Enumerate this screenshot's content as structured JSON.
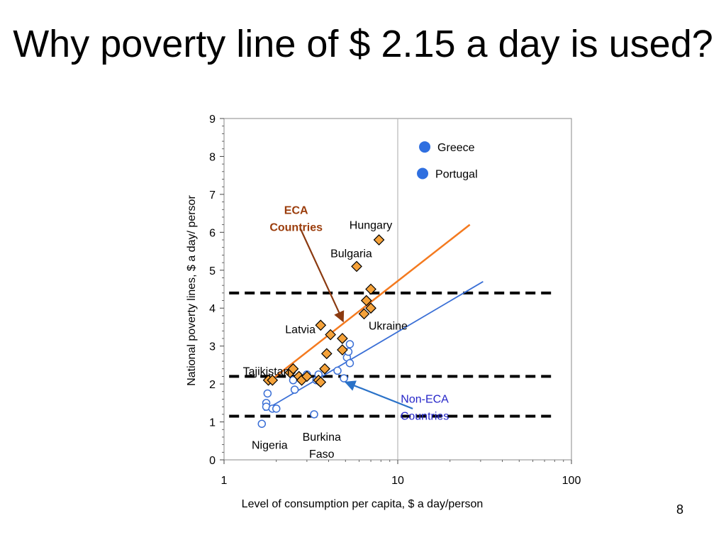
{
  "slide": {
    "title": "Why poverty line of $ 2.15 a day is used?",
    "page_number": "8"
  },
  "colors": {
    "eca_marker": "#f5a23a",
    "eca_line": "#f47a1f",
    "non_eca_line": "#3a6fd6",
    "non_eca_marker_stroke": "#3a6fd6",
    "highlight_marker": "#2f6fe0",
    "eca_label": "#9b3d0c",
    "non_eca_label": "#2424c8",
    "eca_arrow": "#8b3a10",
    "non_eca_arrow": "#2a72c8"
  },
  "chart_data": {
    "type": "scatter",
    "title": "",
    "xlabel": "Level of consumption per capita, $ a day/person",
    "ylabel": "National poverty lines, $ a day/ persor",
    "x_scale": "log",
    "xlim": [
      1,
      100
    ],
    "ylim": [
      0,
      9
    ],
    "x_ticks": [
      1,
      10,
      100
    ],
    "x_tick_labels": [
      "1",
      "10",
      "100"
    ],
    "y_ticks": [
      0,
      1,
      2,
      3,
      4,
      5,
      6,
      7,
      8,
      9
    ],
    "y_tick_labels": [
      "0",
      "1",
      "2",
      "3",
      "4",
      "5",
      "6",
      "7",
      "8",
      "9"
    ],
    "vertical_gridline_x": 10,
    "series": [
      {
        "name": "ECA Countries",
        "marker": "diamond",
        "points": [
          [
            1.8,
            2.1
          ],
          [
            1.9,
            2.1
          ],
          [
            2.4,
            2.3
          ],
          [
            2.5,
            2.4
          ],
          [
            2.7,
            2.2
          ],
          [
            2.8,
            2.1
          ],
          [
            3.0,
            2.2
          ],
          [
            3.5,
            2.1
          ],
          [
            3.6,
            2.05
          ],
          [
            3.6,
            3.55
          ],
          [
            3.8,
            2.4
          ],
          [
            3.9,
            2.8
          ],
          [
            4.1,
            3.3
          ],
          [
            4.8,
            2.9
          ],
          [
            4.8,
            3.2
          ],
          [
            5.8,
            5.1
          ],
          [
            6.4,
            3.85
          ],
          [
            6.6,
            4.2
          ],
          [
            7.0,
            4.0
          ],
          [
            7.0,
            4.5
          ],
          [
            7.8,
            5.8
          ]
        ]
      },
      {
        "name": "Non-ECA Countries",
        "marker": "circle-open",
        "points": [
          [
            1.65,
            0.95
          ],
          [
            1.75,
            1.5
          ],
          [
            1.75,
            1.4
          ],
          [
            1.78,
            1.75
          ],
          [
            1.9,
            1.35
          ],
          [
            2.0,
            1.35
          ],
          [
            2.5,
            2.1
          ],
          [
            2.55,
            1.85
          ],
          [
            3.0,
            2.25
          ],
          [
            3.3,
            1.2
          ],
          [
            3.4,
            2.1
          ],
          [
            3.5,
            2.25
          ],
          [
            4.5,
            2.35
          ],
          [
            4.9,
            2.15
          ],
          [
            5.1,
            2.7
          ],
          [
            5.2,
            2.85
          ],
          [
            5.3,
            2.55
          ],
          [
            5.3,
            3.05
          ]
        ]
      },
      {
        "name": "Highlighted",
        "marker": "circle-filled",
        "points": [
          [
            13,
            8.25
          ],
          [
            11.5,
            7.55
          ]
        ]
      }
    ],
    "trend_lines": [
      {
        "name": "ECA fit",
        "from": [
          1.8,
          2.05
        ],
        "to": [
          26,
          6.2
        ]
      },
      {
        "name": "Non-ECA fit",
        "from": [
          1.7,
          1.3
        ],
        "to": [
          31,
          4.7
        ]
      }
    ],
    "reference_lines": [
      {
        "y": 4.4,
        "style": "dashed"
      },
      {
        "y": 2.2,
        "style": "dashed"
      },
      {
        "y": 1.15,
        "style": "dashed"
      }
    ],
    "reference_lines_x_range": [
      1.07,
      80
    ],
    "legend": [
      {
        "label": "Greece",
        "marker_at": [
          14.3,
          8.25
        ]
      },
      {
        "label": "Portugal",
        "marker_at": [
          13.9,
          7.55
        ]
      }
    ],
    "annotations": [
      {
        "id": "hungary",
        "text": "Hungary",
        "at": [
          7.0,
          6.2
        ],
        "anchor": "middle"
      },
      {
        "id": "bulgaria",
        "text": "Bulgaria",
        "at": [
          5.4,
          5.45
        ],
        "anchor": "middle"
      },
      {
        "id": "ukraine",
        "text": "Ukraine",
        "at": [
          8.8,
          3.55
        ],
        "anchor": "middle"
      },
      {
        "id": "latvia",
        "text": "Latvia",
        "at": [
          2.75,
          3.45
        ],
        "anchor": "middle"
      },
      {
        "id": "tajikistan",
        "text": "Tajikistan",
        "at": [
          1.75,
          2.35
        ],
        "anchor": "middle"
      },
      {
        "id": "nigeria",
        "text": "Nigeria",
        "at": [
          1.83,
          0.4
        ],
        "anchor": "middle"
      },
      {
        "id": "burkina-1",
        "text": "Burkina",
        "at": [
          3.65,
          0.62
        ],
        "anchor": "middle"
      },
      {
        "id": "burkina-2",
        "text": "Faso",
        "at": [
          3.65,
          0.17
        ],
        "anchor": "middle"
      }
    ],
    "group_labels": [
      {
        "id": "eca",
        "lines": [
          "ECA",
          "Countries"
        ],
        "at": [
          2.6,
          6.6
        ],
        "color_key": "eca_label",
        "bold": true
      },
      {
        "id": "non-eca",
        "lines": [
          "Non-ECA",
          "Countries"
        ],
        "at": [
          14.3,
          1.62
        ],
        "color_key": "non_eca_label",
        "bold": false
      }
    ],
    "arrows": [
      {
        "id": "eca-arrow",
        "from": [
          2.75,
          6.1
        ],
        "to": [
          4.85,
          3.65
        ],
        "color_key": "eca_arrow"
      },
      {
        "id": "non-eca-arrow",
        "from": [
          12.2,
          1.35
        ],
        "to": [
          5.0,
          2.05
        ],
        "color_key": "non_eca_arrow"
      }
    ]
  }
}
